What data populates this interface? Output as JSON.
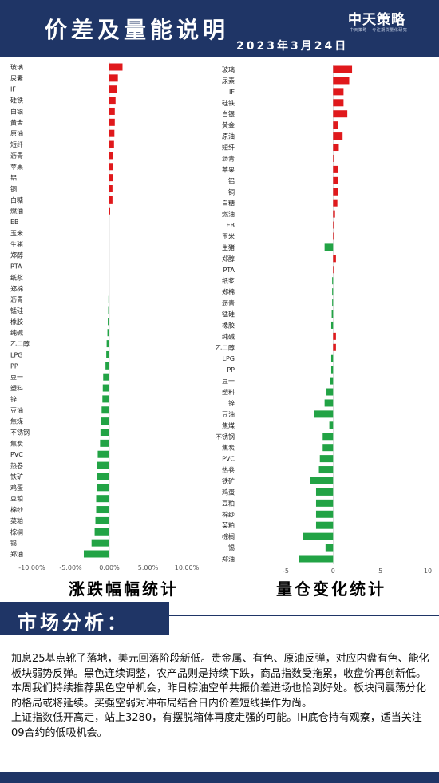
{
  "header": {
    "title": "价差及量能说明",
    "brand": "中天策略",
    "brand_sub": "中天策略 · 专注期货量化研究",
    "date": "2023年3月24日"
  },
  "chart_data": [
    {
      "type": "bar",
      "orientation": "horizontal",
      "title": "涨跌幅幅统计",
      "categories": [
        "玻璃",
        "尿素",
        "IF",
        "硅铁",
        "白银",
        "黄金",
        "原油",
        "短纤",
        "沥青",
        "苹果",
        "铝",
        "铜",
        "白糖",
        "燃油",
        "EB",
        "玉米",
        "生猪",
        "郑醇",
        "PTA",
        "纸浆",
        "郑棉",
        "沥青",
        "锰硅",
        "橡胶",
        "纯碱",
        "乙二醇",
        "LPG",
        "PP",
        "豆一",
        "塑料",
        "锌",
        "豆油",
        "焦煤",
        "不锈钢",
        "焦炭",
        "PVC",
        "热卷",
        "铁矿",
        "鸡蛋",
        "豆粕",
        "棉纱",
        "菜粕",
        "棕榈",
        "锡",
        "郑油"
      ],
      "values": [
        1.7,
        1.1,
        1.0,
        0.8,
        0.7,
        0.7,
        0.65,
        0.6,
        0.5,
        0.5,
        0.45,
        0.4,
        0.4,
        0.1,
        0,
        0,
        0,
        -0.05,
        -0.08,
        -0.1,
        -0.1,
        -0.12,
        -0.15,
        -0.2,
        -0.25,
        -0.35,
        -0.4,
        -0.5,
        -0.8,
        -0.85,
        -0.9,
        -1.0,
        -1.1,
        -1.15,
        -1.2,
        -1.5,
        -1.55,
        -1.55,
        -1.6,
        -1.7,
        -1.7,
        -1.8,
        -1.9,
        -2.3,
        -3.3
      ],
      "xlim": [
        -10,
        10
      ],
      "tick_labels": [
        "-10.00%",
        "-5.00%",
        "0.00%",
        "5.00%",
        "10.00%"
      ],
      "positive_color": "#e0191c",
      "negative_color": "#22a345",
      "grid": false
    },
    {
      "type": "bar",
      "orientation": "horizontal",
      "title": "量仓变化统计",
      "categories": [
        "玻璃",
        "尿素",
        "IF",
        "硅铁",
        "白银",
        "黄金",
        "原油",
        "短纤",
        "沥青",
        "苹果",
        "铝",
        "铜",
        "白糖",
        "燃油",
        "EB",
        "玉米",
        "生猪",
        "郑醇",
        "PTA",
        "纸浆",
        "郑棉",
        "沥青",
        "锰硅",
        "橡胶",
        "纯碱",
        "乙二醇",
        "LPG",
        "PP",
        "豆一",
        "塑料",
        "锌",
        "豆油",
        "焦煤",
        "不锈钢",
        "焦炭",
        "PVC",
        "热卷",
        "铁矿",
        "鸡蛋",
        "豆粕",
        "棉纱",
        "菜粕",
        "棕榈",
        "锡",
        "郑油"
      ],
      "values": [
        2.0,
        1.7,
        1.1,
        1.1,
        1.5,
        0.5,
        1.0,
        0.6,
        0.1,
        0.5,
        0.5,
        0.5,
        0.45,
        0.2,
        0.1,
        0.1,
        -0.9,
        0.3,
        0.1,
        -0.1,
        -0.1,
        -0.1,
        -0.15,
        -0.2,
        0.3,
        0.3,
        -0.2,
        -0.2,
        -0.3,
        -0.7,
        -0.9,
        -2.0,
        -0.4,
        -1.1,
        -1.1,
        -1.4,
        -1.5,
        -2.4,
        -1.8,
        -1.8,
        -1.8,
        -1.8,
        -3.2,
        -0.8,
        -3.6
      ],
      "xlim": [
        -5,
        10
      ],
      "tick_labels": [
        "-5",
        "0",
        "5",
        "10"
      ],
      "positive_color": "#e0191c",
      "negative_color": "#22a345",
      "grid": false
    }
  ],
  "analysis": {
    "title": "市场分析：",
    "paragraphs": [
      "加息25基点靴子落地，美元回落阶段新低。贵金属、有色、原油反弹，对应内盘有色、能化板块弱势反弹。黑色连续调整，农产品则是持续下跌，商品指数受拖累，收盘价再创新低。本周我们持续推荐黑色空单机会，昨日棕油空单共振价差进场也恰到好处。板块间震荡分化的格局或将延续。买强空弱对冲布局结合日内价差短线操作为尚。",
      "上证指数低开高走，站上3280，有摆脱箱体再度走强的可能。IH底仓持有观察，适当关注09合约的低吸机会。"
    ]
  }
}
